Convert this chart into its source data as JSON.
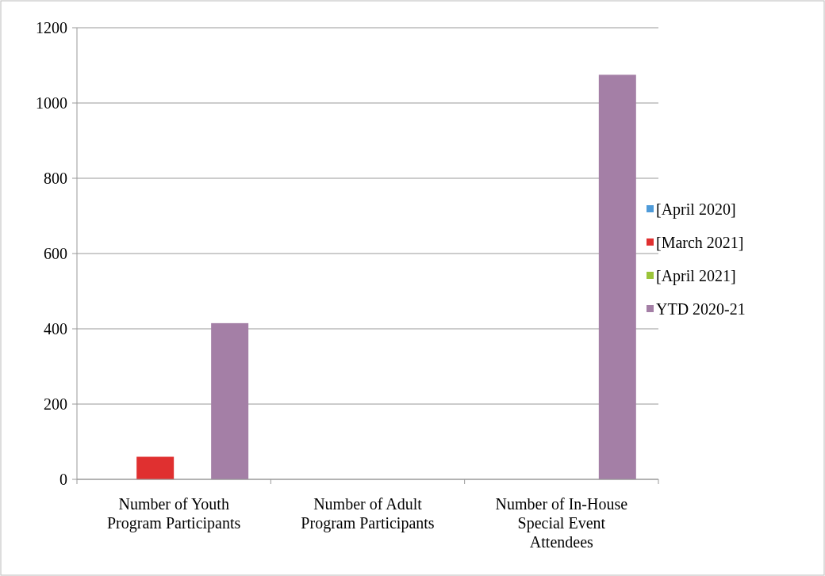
{
  "chart_data": {
    "type": "bar",
    "categories": [
      "Number of Youth Program Participants",
      "Number of Adult Program Participants",
      "Number of In-House Special Event Attendees"
    ],
    "series": [
      {
        "name": "[April 2020]",
        "color": "#4f9bd9",
        "values": [
          null,
          null,
          null
        ]
      },
      {
        "name": "[March 2021]",
        "color": "#e03030",
        "values": [
          60,
          null,
          null
        ]
      },
      {
        "name": "[April 2021]",
        "color": "#9bc43a",
        "values": [
          null,
          null,
          null
        ]
      },
      {
        "name": "YTD 2020-21",
        "color": "#a47fa6",
        "values": [
          415,
          null,
          1075
        ]
      }
    ],
    "ylim": [
      0,
      1200
    ],
    "yticks": [
      0,
      200,
      400,
      600,
      800,
      1000,
      1200
    ],
    "grid": "y",
    "legend": "right"
  }
}
